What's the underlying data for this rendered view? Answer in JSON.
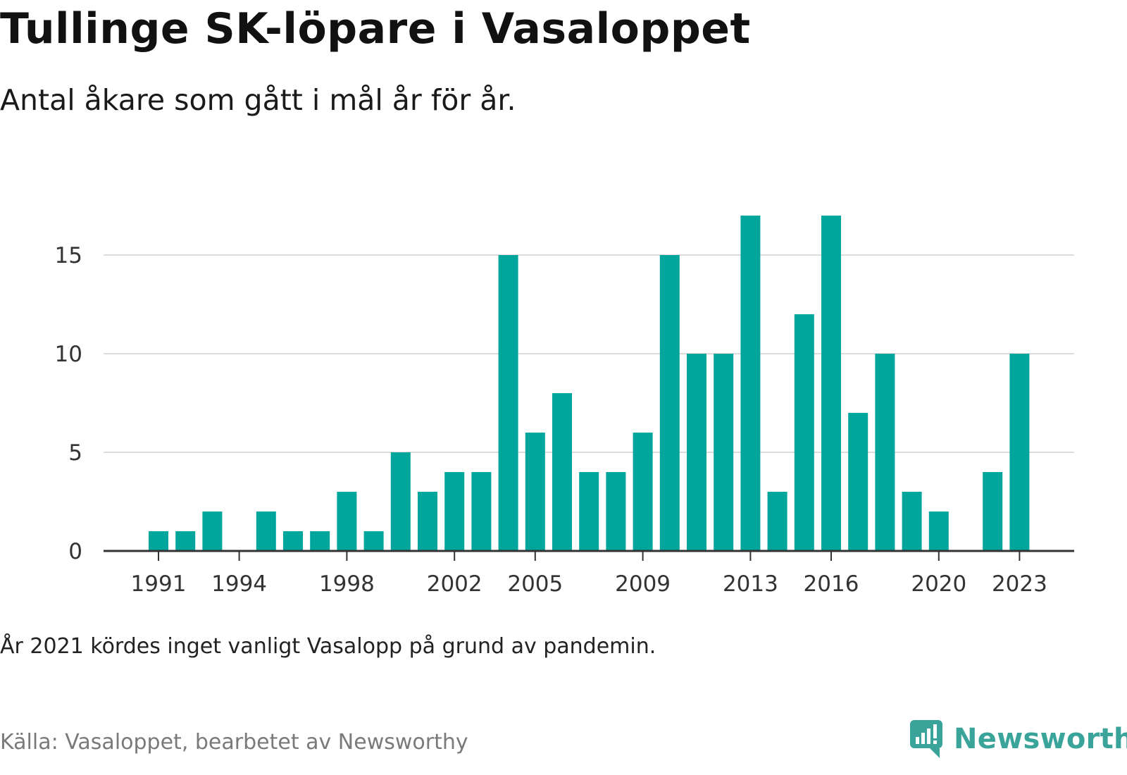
{
  "title": "Tullinge SK-löpare i Vasaloppet",
  "subtitle": "Antal åkare som gått i mål år för år.",
  "note": "År 2021 kördes inget vanligt Vasalopp på grund av pandemin.",
  "source": "Källa: Vasaloppet, bearbetet av Newsworthy",
  "brand": {
    "name": "Newsworthy",
    "color": "#3aa39a",
    "icon": "newsworthy-logo-icon"
  },
  "chart_data": {
    "type": "bar",
    "x": [
      1991,
      1992,
      1993,
      1994,
      1995,
      1996,
      1997,
      1998,
      1999,
      2000,
      2001,
      2002,
      2003,
      2004,
      2005,
      2006,
      2007,
      2008,
      2009,
      2010,
      2011,
      2012,
      2013,
      2014,
      2015,
      2016,
      2017,
      2018,
      2019,
      2020,
      2021,
      2022,
      2023
    ],
    "values": [
      1,
      1,
      2,
      0,
      2,
      1,
      1,
      3,
      1,
      5,
      3,
      4,
      4,
      15,
      6,
      8,
      4,
      4,
      6,
      15,
      10,
      10,
      17,
      3,
      12,
      17,
      7,
      10,
      3,
      2,
      0,
      4,
      10
    ],
    "x_tick_labels": [
      "1991",
      "1994",
      "1998",
      "2002",
      "2005",
      "2009",
      "2013",
      "2016",
      "2020",
      "2023"
    ],
    "y_ticks": [
      0,
      5,
      10,
      15
    ],
    "ylim": [
      0,
      17
    ],
    "xlabel": "",
    "ylabel": "",
    "grid": true,
    "bar_color": "#00a69c",
    "grid_color": "#dcdcdc",
    "axis_color": "#333333"
  }
}
